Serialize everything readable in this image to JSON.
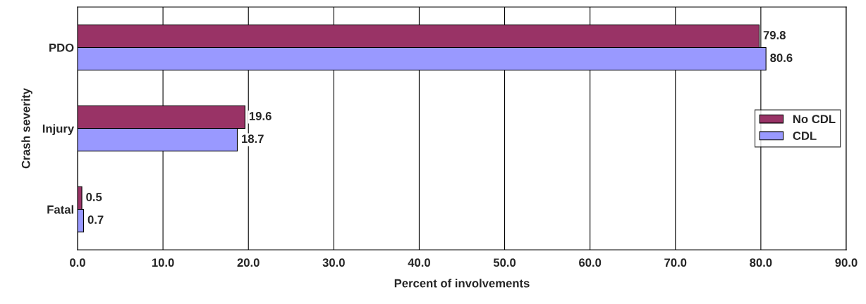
{
  "chart_data": {
    "type": "bar",
    "orientation": "horizontal",
    "xlabel": "Percent of involvements",
    "ylabel": "Crash severity",
    "categories": [
      "PDO",
      "Injury",
      "Fatal"
    ],
    "series": [
      {
        "name": "No CDL",
        "color": "#993366",
        "values": [
          79.8,
          19.6,
          0.5
        ]
      },
      {
        "name": "CDL",
        "color": "#9999ff",
        "values": [
          80.6,
          18.7,
          0.7
        ]
      }
    ],
    "xlim": [
      0,
      90
    ],
    "xticks": [
      {
        "value": 0,
        "label": "0.0"
      },
      {
        "value": 10,
        "label": "10.0"
      },
      {
        "value": 20,
        "label": "20.0"
      },
      {
        "value": 30,
        "label": "30.0"
      },
      {
        "value": 40,
        "label": "40.0"
      },
      {
        "value": 50,
        "label": "50.0"
      },
      {
        "value": 60,
        "label": "60.0"
      },
      {
        "value": 70,
        "label": "70.0"
      },
      {
        "value": 80,
        "label": "80.0"
      },
      {
        "value": 90,
        "label": "90.0"
      }
    ],
    "grid": "x",
    "legend": "right",
    "data_labels": true
  }
}
